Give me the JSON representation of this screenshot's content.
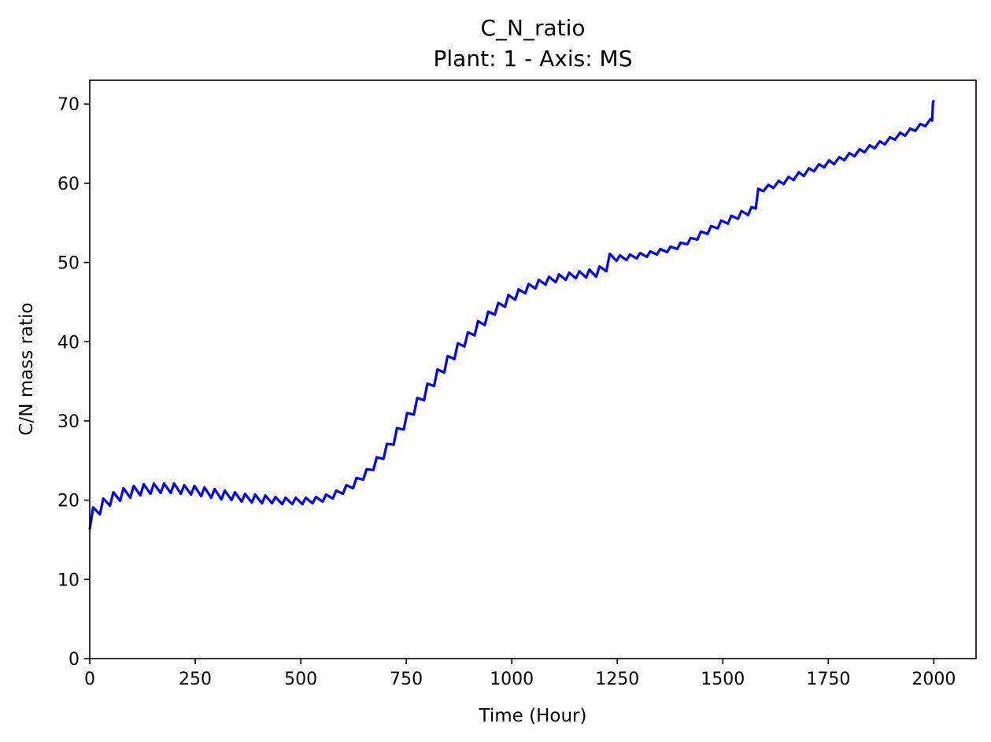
{
  "chart_data": {
    "type": "line",
    "title": "C_N_ratio",
    "subtitle": "Plant: 1 - Axis: MS",
    "xlabel": "Time (Hour)",
    "ylabel": "C/N mass ratio",
    "xlim": [
      0,
      2100
    ],
    "ylim": [
      0,
      73
    ],
    "xticks": [
      0,
      250,
      500,
      750,
      1000,
      1250,
      1500,
      1750,
      2000
    ],
    "yticks": [
      0,
      10,
      20,
      30,
      40,
      50,
      60,
      70
    ],
    "grid": false,
    "series": [
      {
        "color": "#0000ff",
        "sampling": "24-hour sawtooth (peak near hour 8, trough at day end)",
        "peaks": [
          [
            8,
            19.1
          ],
          [
            32,
            20.2
          ],
          [
            56,
            21.0
          ],
          [
            80,
            21.5
          ],
          [
            104,
            21.8
          ],
          [
            128,
            22.0
          ],
          [
            152,
            22.1
          ],
          [
            176,
            22.1
          ],
          [
            200,
            22.1
          ],
          [
            224,
            21.9
          ],
          [
            248,
            21.8
          ],
          [
            272,
            21.6
          ],
          [
            296,
            21.4
          ],
          [
            320,
            21.2
          ],
          [
            344,
            21.0
          ],
          [
            368,
            20.8
          ],
          [
            392,
            20.7
          ],
          [
            416,
            20.6
          ],
          [
            440,
            20.4
          ],
          [
            464,
            20.3
          ],
          [
            488,
            20.3
          ],
          [
            512,
            20.3
          ],
          [
            536,
            20.4
          ],
          [
            560,
            20.7
          ],
          [
            584,
            21.2
          ],
          [
            608,
            21.9
          ],
          [
            632,
            22.8
          ],
          [
            656,
            23.9
          ],
          [
            680,
            25.4
          ],
          [
            704,
            27.1
          ],
          [
            728,
            29.1
          ],
          [
            752,
            31.0
          ],
          [
            776,
            32.9
          ],
          [
            800,
            34.7
          ],
          [
            824,
            36.5
          ],
          [
            848,
            38.2
          ],
          [
            872,
            39.8
          ],
          [
            896,
            41.2
          ],
          [
            920,
            42.6
          ],
          [
            944,
            43.8
          ],
          [
            968,
            44.9
          ],
          [
            992,
            45.9
          ],
          [
            1016,
            46.6
          ],
          [
            1040,
            47.3
          ],
          [
            1064,
            47.8
          ],
          [
            1088,
            48.2
          ],
          [
            1112,
            48.5
          ],
          [
            1136,
            48.7
          ],
          [
            1160,
            48.9
          ],
          [
            1184,
            49.1
          ],
          [
            1208,
            49.5
          ],
          [
            1232,
            51.1
          ],
          [
            1256,
            50.9
          ],
          [
            1280,
            51.0
          ],
          [
            1304,
            51.2
          ],
          [
            1328,
            51.4
          ],
          [
            1352,
            51.7
          ],
          [
            1376,
            52.0
          ],
          [
            1400,
            52.5
          ],
          [
            1424,
            53.1
          ],
          [
            1448,
            53.9
          ],
          [
            1472,
            54.6
          ],
          [
            1496,
            55.3
          ],
          [
            1520,
            55.9
          ],
          [
            1544,
            56.5
          ],
          [
            1568,
            57.0
          ],
          [
            1584,
            59.3
          ],
          [
            1608,
            59.8
          ],
          [
            1632,
            60.3
          ],
          [
            1656,
            60.8
          ],
          [
            1680,
            61.4
          ],
          [
            1704,
            61.9
          ],
          [
            1728,
            62.4
          ],
          [
            1752,
            62.9
          ],
          [
            1776,
            63.3
          ],
          [
            1800,
            63.8
          ],
          [
            1824,
            64.3
          ],
          [
            1848,
            64.8
          ],
          [
            1872,
            65.3
          ],
          [
            1896,
            65.8
          ],
          [
            1920,
            66.4
          ],
          [
            1944,
            66.9
          ],
          [
            1968,
            67.5
          ],
          [
            1992,
            68.1
          ],
          [
            1998,
            70.2
          ],
          [
            2000,
            70.5
          ]
        ],
        "troughs": [
          [
            0,
            16.3
          ],
          [
            24,
            18.2
          ],
          [
            48,
            19.3
          ],
          [
            72,
            19.9
          ],
          [
            96,
            20.3
          ],
          [
            120,
            20.6
          ],
          [
            144,
            20.8
          ],
          [
            168,
            20.9
          ],
          [
            192,
            20.9
          ],
          [
            216,
            20.8
          ],
          [
            240,
            20.7
          ],
          [
            264,
            20.5
          ],
          [
            288,
            20.3
          ],
          [
            312,
            20.1
          ],
          [
            336,
            20.0
          ],
          [
            360,
            19.8
          ],
          [
            384,
            19.7
          ],
          [
            408,
            19.6
          ],
          [
            432,
            19.6
          ],
          [
            456,
            19.5
          ],
          [
            480,
            19.5
          ],
          [
            504,
            19.5
          ],
          [
            528,
            19.6
          ],
          [
            552,
            19.8
          ],
          [
            576,
            20.2
          ],
          [
            600,
            20.8
          ],
          [
            624,
            21.5
          ],
          [
            648,
            22.6
          ],
          [
            672,
            23.8
          ],
          [
            696,
            25.2
          ],
          [
            720,
            27.0
          ],
          [
            744,
            28.9
          ],
          [
            768,
            30.8
          ],
          [
            792,
            32.6
          ],
          [
            816,
            34.4
          ],
          [
            840,
            36.1
          ],
          [
            864,
            37.8
          ],
          [
            888,
            39.4
          ],
          [
            912,
            40.8
          ],
          [
            936,
            42.1
          ],
          [
            960,
            43.4
          ],
          [
            984,
            44.4
          ],
          [
            1008,
            45.3
          ],
          [
            1032,
            46.1
          ],
          [
            1056,
            46.7
          ],
          [
            1080,
            47.2
          ],
          [
            1104,
            47.5
          ],
          [
            1128,
            47.8
          ],
          [
            1152,
            48.0
          ],
          [
            1176,
            48.1
          ],
          [
            1200,
            48.2
          ],
          [
            1224,
            48.9
          ],
          [
            1248,
            50.2
          ],
          [
            1272,
            50.3
          ],
          [
            1296,
            50.5
          ],
          [
            1320,
            50.7
          ],
          [
            1344,
            51.0
          ],
          [
            1368,
            51.3
          ],
          [
            1392,
            51.7
          ],
          [
            1416,
            52.3
          ],
          [
            1440,
            52.9
          ],
          [
            1464,
            53.6
          ],
          [
            1488,
            54.3
          ],
          [
            1512,
            54.9
          ],
          [
            1536,
            55.5
          ],
          [
            1560,
            56.0
          ],
          [
            1578,
            56.8
          ],
          [
            1596,
            59.0
          ],
          [
            1620,
            59.4
          ],
          [
            1644,
            59.9
          ],
          [
            1668,
            60.4
          ],
          [
            1692,
            60.9
          ],
          [
            1716,
            61.5
          ],
          [
            1740,
            62.0
          ],
          [
            1764,
            62.4
          ],
          [
            1788,
            62.9
          ],
          [
            1812,
            63.4
          ],
          [
            1836,
            63.9
          ],
          [
            1860,
            64.4
          ],
          [
            1884,
            64.9
          ],
          [
            1908,
            65.5
          ],
          [
            1932,
            66.0
          ],
          [
            1956,
            66.6
          ],
          [
            1980,
            67.2
          ],
          [
            1996,
            67.9
          ]
        ]
      }
    ]
  }
}
